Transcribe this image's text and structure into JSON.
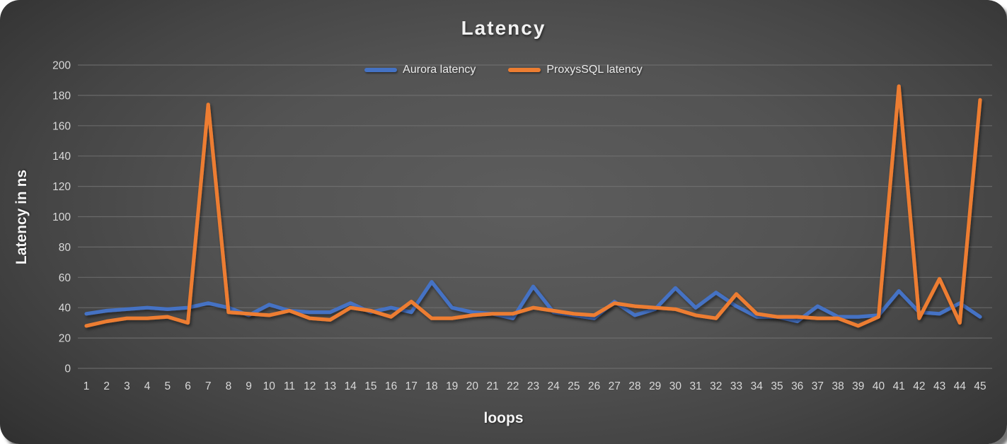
{
  "title": "Latency",
  "colors": {
    "aurora_line": "#4472C4",
    "proxysql_line": "#ED7D31",
    "tick_text": "#d9d9d9",
    "gridline": "#757575",
    "title_text": "#f2f2f2"
  },
  "legend": {
    "items": [
      {
        "label": "Aurora latency",
        "color": "#4472C4"
      },
      {
        "label": "ProxysSQL latency",
        "color": "#ED7D31"
      }
    ]
  },
  "chart_data": {
    "type": "line",
    "title": "Latency",
    "xlabel": "loops",
    "ylabel": "Latency in ns",
    "ylim": [
      0,
      200
    ],
    "ytick_step": 20,
    "grid": true,
    "legend_position": "top-center",
    "x": [
      1,
      2,
      3,
      4,
      5,
      6,
      7,
      8,
      9,
      10,
      11,
      12,
      13,
      14,
      15,
      16,
      17,
      18,
      19,
      20,
      21,
      22,
      23,
      24,
      25,
      26,
      27,
      28,
      29,
      30,
      31,
      32,
      33,
      34,
      35,
      36,
      37,
      38,
      39,
      40,
      41,
      42,
      43,
      44,
      45
    ],
    "series": [
      {
        "name": "Aurora latency",
        "color": "#4472C4",
        "values": [
          36,
          38,
          39,
          40,
          39,
          40,
          43,
          40,
          35,
          42,
          38,
          37,
          37,
          43,
          37,
          40,
          37,
          57,
          40,
          37,
          36,
          33,
          54,
          37,
          35,
          33,
          44,
          35,
          39,
          53,
          40,
          50,
          41,
          34,
          34,
          31,
          41,
          34,
          34,
          35,
          51,
          37,
          36,
          43,
          34
        ]
      },
      {
        "name": "ProxysSQL latency",
        "color": "#ED7D31",
        "values": [
          28,
          31,
          33,
          33,
          34,
          30,
          174,
          37,
          36,
          35,
          38,
          33,
          32,
          40,
          38,
          34,
          44,
          33,
          33,
          35,
          36,
          36,
          40,
          38,
          36,
          35,
          43,
          41,
          40,
          39,
          35,
          33,
          49,
          36,
          34,
          34,
          33,
          33,
          28,
          34,
          186,
          33,
          59,
          30,
          177
        ]
      }
    ]
  }
}
